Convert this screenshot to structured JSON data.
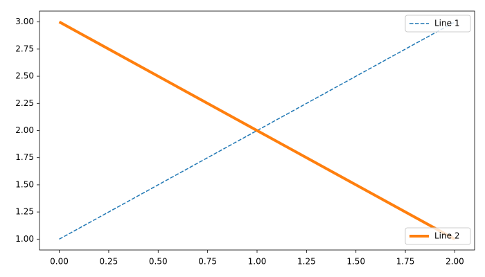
{
  "chart_data": {
    "type": "line",
    "x": [
      0,
      1,
      2
    ],
    "series": [
      {
        "name": "Line 1",
        "color": "#1f77b4",
        "values": [
          1,
          2,
          3
        ],
        "linestyle": "dashed",
        "linewidth": 1.5,
        "legend_loc": "upper right"
      },
      {
        "name": "Line 2",
        "color": "#ff7f0e",
        "values": [
          3,
          2,
          1
        ],
        "linestyle": "solid",
        "linewidth": 4,
        "legend_loc": "lower right"
      }
    ],
    "xlim": [
      -0.1,
      2.1
    ],
    "ylim": [
      0.9,
      3.1
    ],
    "xticks": [
      {
        "value": 0,
        "label": "0.00"
      },
      {
        "value": 0.25,
        "label": "0.25"
      },
      {
        "value": 0.5,
        "label": "0.50"
      },
      {
        "value": 0.75,
        "label": "0.75"
      },
      {
        "value": 1,
        "label": "1.00"
      },
      {
        "value": 1.25,
        "label": "1.25"
      },
      {
        "value": 1.5,
        "label": "1.50"
      },
      {
        "value": 1.75,
        "label": "1.75"
      },
      {
        "value": 2,
        "label": "2.00"
      }
    ],
    "yticks": [
      {
        "value": 1,
        "label": "1.00"
      },
      {
        "value": 1.25,
        "label": "1.25"
      },
      {
        "value": 1.5,
        "label": "1.50"
      },
      {
        "value": 1.75,
        "label": "1.75"
      },
      {
        "value": 2,
        "label": "2.00"
      },
      {
        "value": 2.25,
        "label": "2.25"
      },
      {
        "value": 2.5,
        "label": "2.50"
      },
      {
        "value": 2.75,
        "label": "2.75"
      },
      {
        "value": 3,
        "label": "3.00"
      }
    ],
    "grid": false
  }
}
